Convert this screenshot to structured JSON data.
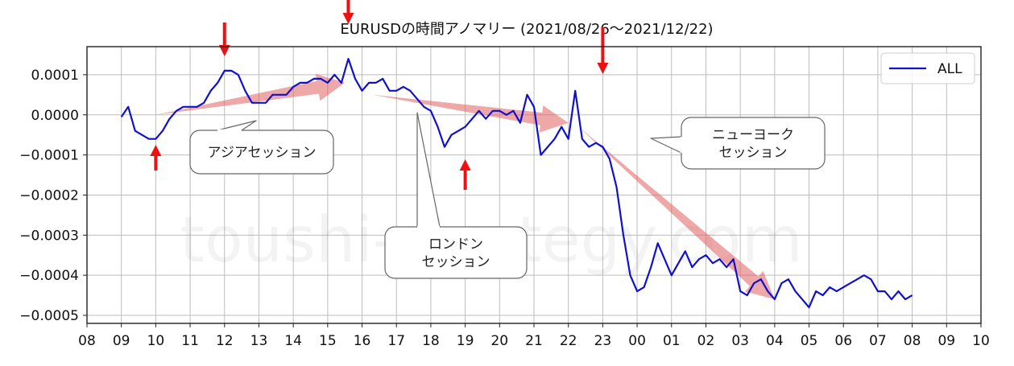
{
  "chart_data": {
    "type": "line",
    "title": "EURUSDの時間アノマリー (2021/08/26〜2021/12/22)",
    "watermark": "toushi-strategy.com",
    "xlabel": "",
    "ylabel": "",
    "x_ticks": [
      "08",
      "09",
      "10",
      "11",
      "12",
      "13",
      "14",
      "15",
      "16",
      "17",
      "18",
      "19",
      "20",
      "21",
      "22",
      "23",
      "00",
      "01",
      "02",
      "03",
      "04",
      "05",
      "06",
      "07",
      "08",
      "09",
      "10"
    ],
    "y_ticks": [
      "0.0001",
      "0.0000",
      "−0.0001",
      "−0.0002",
      "−0.0003",
      "−0.0004",
      "−0.0005"
    ],
    "ylim": [
      -0.00052,
      0.00017
    ],
    "grid": true,
    "legend_position": "top-right",
    "series": [
      {
        "name": "ALL",
        "color": "#1010d0",
        "points": [
          [
            1.0,
            -5e-06
          ],
          [
            1.2,
            2e-05
          ],
          [
            1.4,
            -4e-05
          ],
          [
            1.6,
            -5e-05
          ],
          [
            1.8,
            -6e-05
          ],
          [
            2.0,
            -6e-05
          ],
          [
            2.2,
            -4e-05
          ],
          [
            2.4,
            -1e-05
          ],
          [
            2.6,
            1e-05
          ],
          [
            2.8,
            2e-05
          ],
          [
            3.0,
            2e-05
          ],
          [
            3.2,
            2e-05
          ],
          [
            3.4,
            3e-05
          ],
          [
            3.6,
            6e-05
          ],
          [
            3.8,
            8e-05
          ],
          [
            4.0,
            0.00011
          ],
          [
            4.2,
            0.00011
          ],
          [
            4.4,
            0.0001
          ],
          [
            4.6,
            6e-05
          ],
          [
            4.8,
            3e-05
          ],
          [
            5.0,
            3e-05
          ],
          [
            5.2,
            3e-05
          ],
          [
            5.4,
            5e-05
          ],
          [
            5.6,
            5e-05
          ],
          [
            5.8,
            5e-05
          ],
          [
            6.0,
            7e-05
          ],
          [
            6.2,
            8e-05
          ],
          [
            6.4,
            8e-05
          ],
          [
            6.6,
            9e-05
          ],
          [
            6.8,
            9e-05
          ],
          [
            7.0,
            8e-05
          ],
          [
            7.2,
            0.0001
          ],
          [
            7.4,
            8e-05
          ],
          [
            7.6,
            0.00014
          ],
          [
            7.8,
            9e-05
          ],
          [
            8.0,
            6e-05
          ],
          [
            8.2,
            8e-05
          ],
          [
            8.4,
            8e-05
          ],
          [
            8.6,
            9e-05
          ],
          [
            8.8,
            6e-05
          ],
          [
            9.0,
            6e-05
          ],
          [
            9.2,
            7e-05
          ],
          [
            9.4,
            6e-05
          ],
          [
            9.6,
            4e-05
          ],
          [
            9.8,
            2e-05
          ],
          [
            10.0,
            1e-05
          ],
          [
            10.2,
            -3e-05
          ],
          [
            10.4,
            -8e-05
          ],
          [
            10.6,
            -5e-05
          ],
          [
            10.8,
            -4e-05
          ],
          [
            11.0,
            -3e-05
          ],
          [
            11.2,
            -1e-05
          ],
          [
            11.4,
            1e-05
          ],
          [
            11.6,
            -1e-05
          ],
          [
            11.8,
            1e-05
          ],
          [
            12.0,
            1e-05
          ],
          [
            12.2,
            0.0
          ],
          [
            12.4,
            1e-05
          ],
          [
            12.6,
            -2e-05
          ],
          [
            12.8,
            5e-05
          ],
          [
            13.0,
            2e-05
          ],
          [
            13.2,
            -0.0001
          ],
          [
            13.4,
            -8e-05
          ],
          [
            13.6,
            -6e-05
          ],
          [
            13.8,
            -3e-05
          ],
          [
            14.0,
            -6e-05
          ],
          [
            14.2,
            6e-05
          ],
          [
            14.4,
            -6e-05
          ],
          [
            14.6,
            -8e-05
          ],
          [
            14.8,
            -7e-05
          ],
          [
            15.0,
            -8e-05
          ],
          [
            15.2,
            -0.00011
          ],
          [
            15.4,
            -0.00018
          ],
          [
            15.6,
            -0.0003
          ],
          [
            15.8,
            -0.0004
          ],
          [
            16.0,
            -0.00044
          ],
          [
            16.2,
            -0.00043
          ],
          [
            16.4,
            -0.00038
          ],
          [
            16.6,
            -0.00032
          ],
          [
            16.8,
            -0.00036
          ],
          [
            17.0,
            -0.0004
          ],
          [
            17.2,
            -0.00037
          ],
          [
            17.4,
            -0.00034
          ],
          [
            17.6,
            -0.00038
          ],
          [
            17.8,
            -0.00036
          ],
          [
            18.0,
            -0.00035
          ],
          [
            18.2,
            -0.00037
          ],
          [
            18.4,
            -0.00036
          ],
          [
            18.6,
            -0.00038
          ],
          [
            18.8,
            -0.00036
          ],
          [
            19.0,
            -0.00044
          ],
          [
            19.2,
            -0.00045
          ],
          [
            19.4,
            -0.00042
          ],
          [
            19.6,
            -0.00041
          ],
          [
            19.8,
            -0.00044
          ],
          [
            20.0,
            -0.00046
          ],
          [
            20.2,
            -0.00042
          ],
          [
            20.4,
            -0.00041
          ],
          [
            20.6,
            -0.00044
          ],
          [
            20.8,
            -0.00046
          ],
          [
            21.0,
            -0.00048
          ],
          [
            21.2,
            -0.00044
          ],
          [
            21.4,
            -0.00045
          ],
          [
            21.6,
            -0.00043
          ],
          [
            21.8,
            -0.00044
          ],
          [
            22.0,
            -0.00043
          ],
          [
            22.2,
            -0.00042
          ],
          [
            22.4,
            -0.00041
          ],
          [
            22.6,
            -0.0004
          ],
          [
            22.8,
            -0.00041
          ],
          [
            23.0,
            -0.00044
          ],
          [
            23.2,
            -0.00044
          ],
          [
            23.4,
            -0.00046
          ],
          [
            23.6,
            -0.00044
          ],
          [
            23.8,
            -0.00046
          ],
          [
            24.0,
            -0.00045
          ]
        ]
      }
    ],
    "annotations": {
      "bubbles": [
        {
          "lines": [
            "アジアセッション"
          ]
        },
        {
          "lines": [
            "ロンドン",
            "セッション"
          ]
        },
        {
          "lines": [
            "ニューヨーク",
            "セッション"
          ]
        }
      ],
      "colors": {
        "trend_arrows": "#e06060",
        "markers": "#ee1111",
        "bubble_border": "#666666"
      }
    }
  }
}
